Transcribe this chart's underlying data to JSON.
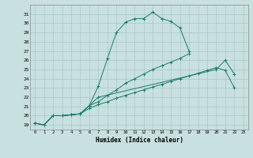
{
  "title": "",
  "xlabel": "Humidex (Indice chaleur)",
  "background_color": "#c8e0e0",
  "grid_color": "#a8c8c8",
  "line_color": "#1a7a6a",
  "xlim": [
    -0.5,
    23.5
  ],
  "ylim": [
    18.5,
    32.0
  ],
  "yticks": [
    19,
    20,
    21,
    22,
    23,
    24,
    25,
    26,
    27,
    28,
    29,
    30,
    31
  ],
  "xticks": [
    0,
    1,
    2,
    3,
    4,
    5,
    6,
    7,
    8,
    9,
    10,
    11,
    12,
    13,
    14,
    15,
    16,
    17,
    18,
    19,
    20,
    21,
    22,
    23
  ],
  "series": [
    {
      "x": [
        0,
        1,
        2,
        3,
        4,
        5,
        6,
        7,
        8,
        9,
        10,
        11,
        12,
        13,
        14,
        15,
        16,
        17
      ],
      "y": [
        19.2,
        19.0,
        20.0,
        20.0,
        20.1,
        20.2,
        21.1,
        23.2,
        26.2,
        29.0,
        30.1,
        30.5,
        30.5,
        31.2,
        30.5,
        30.2,
        29.5,
        27.0
      ]
    },
    {
      "x": [
        0,
        1,
        2,
        3,
        4,
        5,
        6,
        7,
        20,
        21,
        22
      ],
      "y": [
        19.2,
        19.0,
        20.0,
        20.0,
        20.1,
        20.2,
        21.1,
        22.0,
        25.0,
        26.0,
        24.5
      ]
    },
    {
      "x": [
        0,
        1,
        2,
        3,
        4,
        5,
        6,
        7,
        8,
        9,
        10,
        11,
        12,
        13,
        14,
        15,
        16,
        17
      ],
      "y": [
        19.2,
        19.0,
        20.0,
        20.0,
        20.1,
        20.2,
        21.1,
        21.5,
        22.2,
        22.8,
        23.5,
        24.0,
        24.5,
        25.0,
        25.4,
        25.8,
        26.2,
        26.7
      ]
    },
    {
      "x": [
        0,
        1,
        2,
        3,
        4,
        5,
        6,
        7,
        8,
        9,
        10,
        11,
        12,
        13,
        14,
        15,
        16,
        17,
        18,
        19,
        20,
        21,
        22
      ],
      "y": [
        19.2,
        19.0,
        20.0,
        20.0,
        20.1,
        20.2,
        20.8,
        21.2,
        21.5,
        21.9,
        22.2,
        22.5,
        22.8,
        23.1,
        23.4,
        23.7,
        24.0,
        24.3,
        24.6,
        24.9,
        25.2,
        24.9,
        23.0
      ]
    }
  ]
}
